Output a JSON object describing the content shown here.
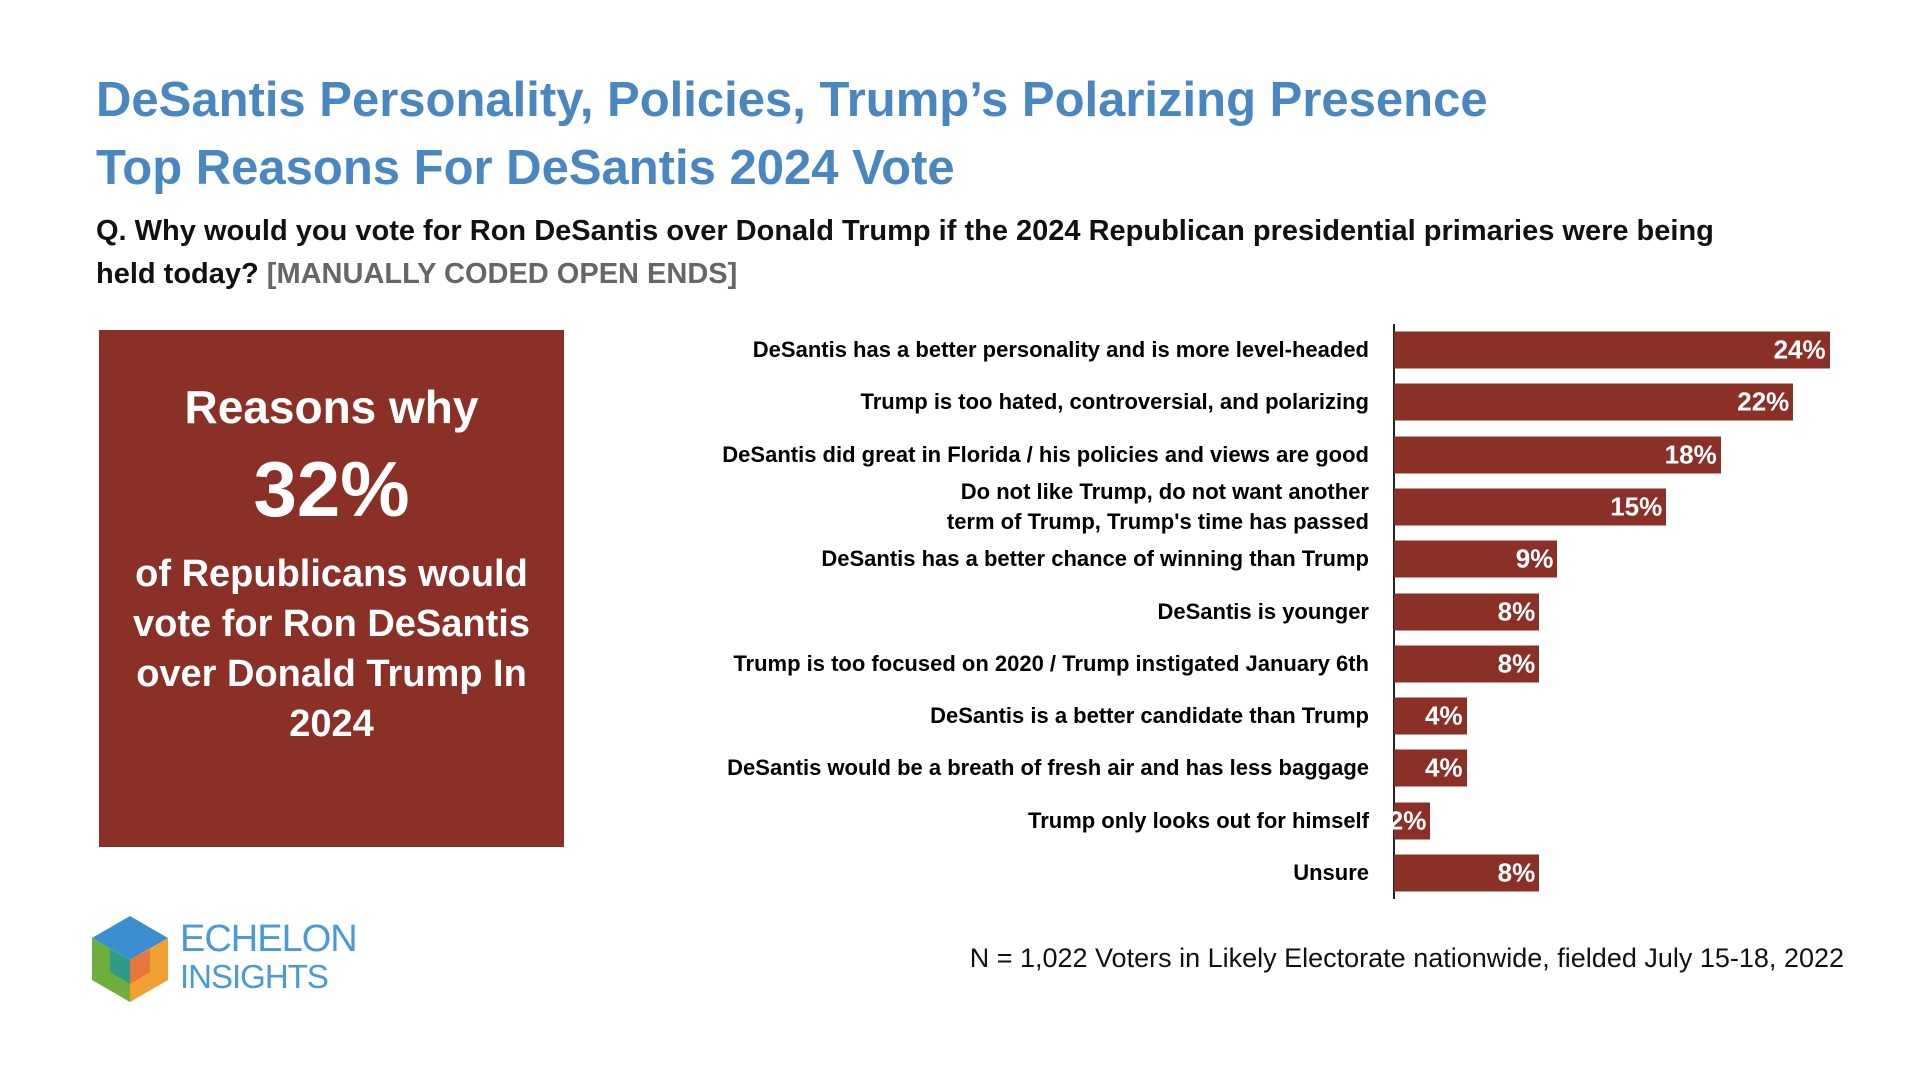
{
  "header": {
    "title_line1": "DeSantis Personality, Policies, Trump’s Polarizing Presence",
    "title_line2": "Top Reasons For DeSantis 2024 Vote",
    "question": "Q. Why would you vote for Ron DeSantis over Donald Trump if the 2024 Republican presidential primaries were being held today?",
    "question_note": "[MANUALLY CODED OPEN ENDS]"
  },
  "callout": {
    "lead": "Reasons why",
    "figure": "32%",
    "text": "of Republicans would vote for Ron DeSantis over Donald Trump In 2024"
  },
  "chart_data": {
    "type": "bar",
    "orientation": "horizontal",
    "color": "#8b3027",
    "categories": [
      "DeSantis has a better personality and is more level-headed",
      "Trump is too hated, controversial, and polarizing",
      "DeSantis did great in Florida / his policies and views are good",
      "Do not like Trump, do not want another\nterm of Trump, Trump's time has passed",
      "DeSantis has a better chance of winning than Trump",
      "DeSantis is younger",
      "Trump is too focused on 2020 / Trump instigated January 6th",
      "DeSantis is a better candidate than Trump",
      "DeSantis would be a breath of fresh air and has less baggage",
      "Trump only looks out for himself",
      "Unsure"
    ],
    "values": [
      24,
      22,
      18,
      15,
      9,
      8,
      8,
      4,
      4,
      2,
      8
    ],
    "value_labels": [
      "24%",
      "22%",
      "18%",
      "15%",
      "9%",
      "8%",
      "8%",
      "4%",
      "4%",
      "2%",
      "8%"
    ]
  },
  "footer": {
    "note": "N = 1,022 Voters in Likely Electorate nationwide, fielded July 15-18, 2022",
    "logo_line1": "ECHELON",
    "logo_line2": "INSIGHTS"
  }
}
